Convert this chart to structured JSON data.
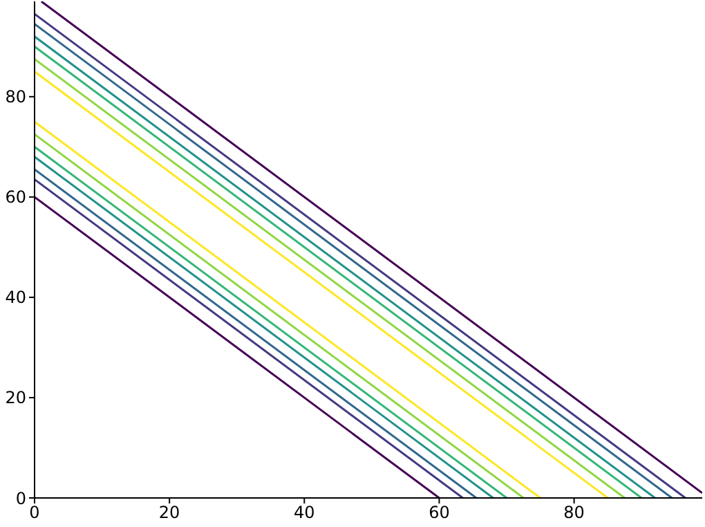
{
  "chart_data": {
    "type": "line",
    "xlim": [
      0,
      99
    ],
    "ylim": [
      0,
      99
    ],
    "xticks": [
      0,
      20,
      40,
      60,
      80
    ],
    "yticks": [
      0,
      20,
      40,
      60,
      80
    ],
    "grid": false,
    "legend": false,
    "marker": "none",
    "line_style": "solid",
    "series": [
      {
        "color": "#440154",
        "x": [
          0,
          60
        ],
        "values": [
          60,
          0
        ]
      },
      {
        "color": "#443983",
        "x": [
          0,
          63.5
        ],
        "values": [
          63.5,
          0
        ]
      },
      {
        "color": "#31688e",
        "x": [
          0,
          65.5
        ],
        "values": [
          65.5,
          0
        ]
      },
      {
        "color": "#21918c",
        "x": [
          0,
          68
        ],
        "values": [
          68,
          0
        ]
      },
      {
        "color": "#35b779",
        "x": [
          0,
          70
        ],
        "values": [
          70,
          0
        ]
      },
      {
        "color": "#90d743",
        "x": [
          0,
          72.5
        ],
        "values": [
          72.5,
          0
        ]
      },
      {
        "color": "#fde725",
        "x": [
          0,
          75
        ],
        "values": [
          75,
          0
        ]
      },
      {
        "color": "#fde725",
        "x": [
          0,
          85
        ],
        "values": [
          85,
          0
        ]
      },
      {
        "color": "#90d743",
        "x": [
          0,
          87.5
        ],
        "values": [
          87.5,
          0
        ]
      },
      {
        "color": "#35b779",
        "x": [
          0,
          90
        ],
        "values": [
          90,
          0
        ]
      },
      {
        "color": "#21918c",
        "x": [
          0,
          92
        ],
        "values": [
          92,
          0
        ]
      },
      {
        "color": "#31688e",
        "x": [
          0,
          94.5
        ],
        "values": [
          94.5,
          0
        ]
      },
      {
        "color": "#443983",
        "x": [
          0,
          96.5
        ],
        "values": [
          96.5,
          0
        ]
      },
      {
        "color": "#440154",
        "x": [
          1,
          99
        ],
        "values": [
          99,
          1
        ]
      }
    ]
  }
}
